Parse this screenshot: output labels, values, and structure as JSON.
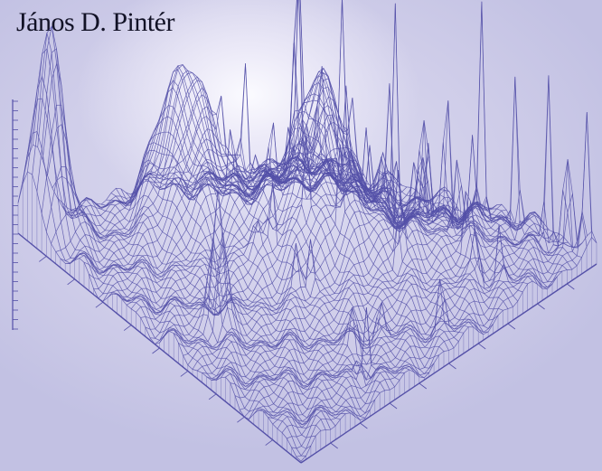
{
  "cover": {
    "author": "János D. Pintér",
    "colors": {
      "background": "#c9c8e6",
      "highlight": "#fbfbff",
      "mesh_line": "#5450a8",
      "text": "#121226"
    },
    "illustration": "3d-wireframe-surface-plot"
  }
}
